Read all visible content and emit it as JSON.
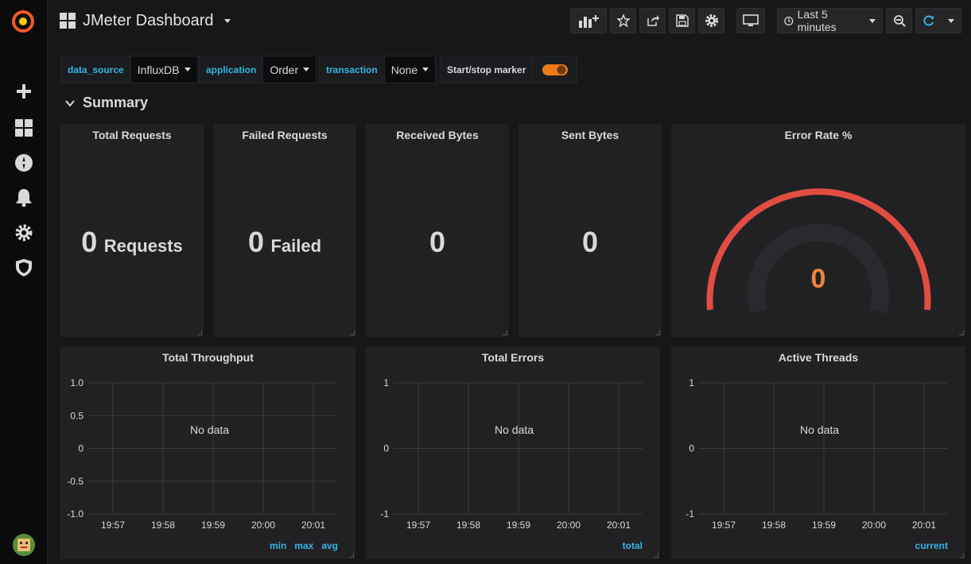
{
  "dashboard": {
    "title": "JMeter Dashboard"
  },
  "time_range": {
    "label": "Last 5 minutes"
  },
  "variables": [
    {
      "name": "data_source",
      "value": "InfluxDB"
    },
    {
      "name": "application",
      "value": "Order"
    },
    {
      "name": "transaction",
      "value": "None"
    }
  ],
  "marker": {
    "label": "Start/stop marker",
    "enabled": true
  },
  "row": {
    "title": "Summary"
  },
  "stats": [
    {
      "title": "Total Requests",
      "value": "0",
      "unit": "Requests"
    },
    {
      "title": "Failed Requests",
      "value": "0",
      "unit": "Failed"
    },
    {
      "title": "Received Bytes",
      "value": "0",
      "unit": ""
    },
    {
      "title": "Sent Bytes",
      "value": "0",
      "unit": ""
    }
  ],
  "gauge": {
    "title": "Error Rate %",
    "value": "0",
    "color": "#ef843c",
    "arc_color": "#e24d42"
  },
  "graphs": [
    {
      "title": "Total Throughput",
      "no_data": "No data",
      "y_ticks": [
        "1.0",
        "0.5",
        "0",
        "-0.5",
        "-1.0"
      ],
      "x_ticks": [
        "19:57",
        "19:58",
        "19:59",
        "20:00",
        "20:01"
      ],
      "legend": [
        "min",
        "max",
        "avg"
      ]
    },
    {
      "title": "Total Errors",
      "no_data": "No data",
      "y_ticks": [
        "1",
        "0",
        "-1"
      ],
      "x_ticks": [
        "19:57",
        "19:58",
        "19:59",
        "20:00",
        "20:01"
      ],
      "legend": [
        "total"
      ]
    },
    {
      "title": "Active Threads",
      "no_data": "No data",
      "y_ticks": [
        "1",
        "0",
        "-1"
      ],
      "x_ticks": [
        "19:57",
        "19:58",
        "19:59",
        "20:00",
        "20:01"
      ],
      "legend": [
        "current"
      ]
    }
  ],
  "colors": {
    "accent": "#33b5e5",
    "background": "#161719",
    "panel": "#212124"
  }
}
